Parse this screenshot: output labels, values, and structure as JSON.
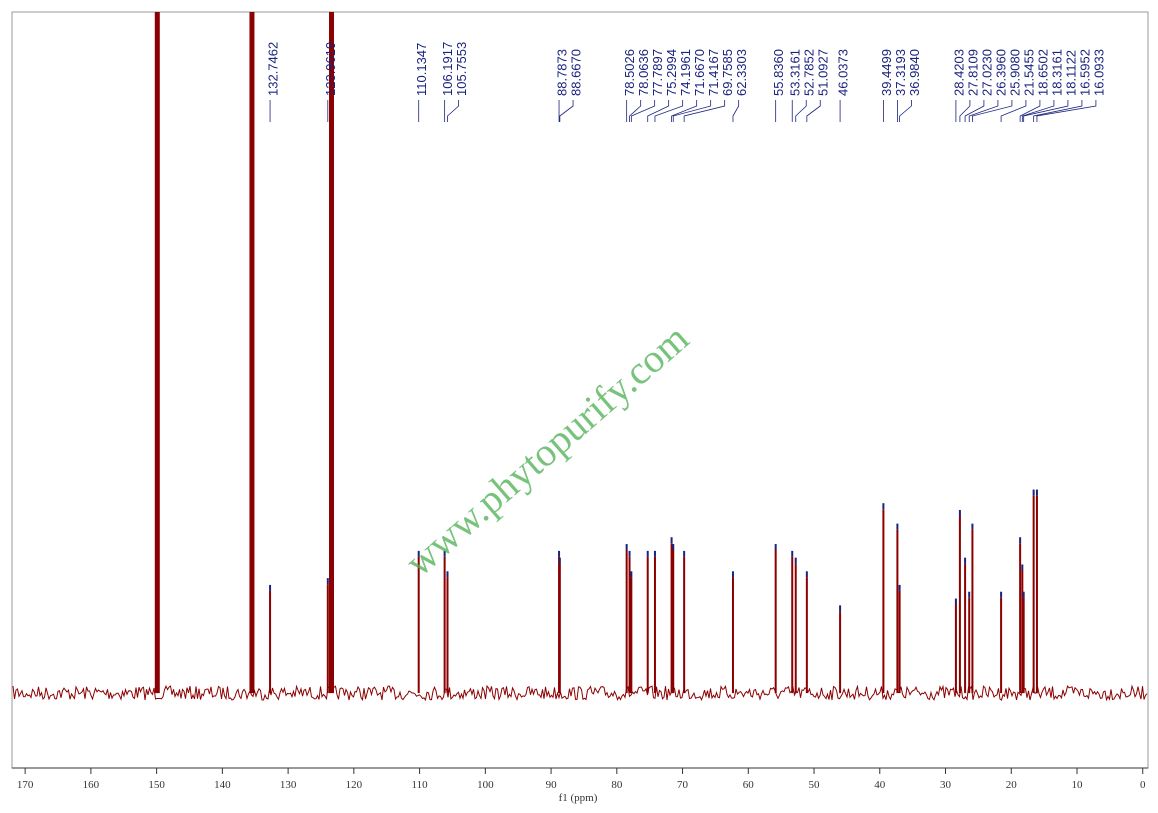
{
  "chart_data": {
    "type": "spectrum",
    "x_label": "f1 (ppm)",
    "watermark": "www.phytopurify.com",
    "xlim": [
      172,
      -0.8
    ],
    "xticks": [
      170,
      160,
      150,
      140,
      130,
      120,
      110,
      100,
      90,
      80,
      70,
      60,
      50,
      40,
      30,
      20,
      10,
      0
    ],
    "ylim": [
      -11,
      100
    ],
    "color": "#8b0000",
    "label_color": "#1a237e",
    "peaks": {
      "x": [
        132.7462,
        123.9619,
        110.1347,
        106.1917,
        105.7553,
        88.7873,
        88.667,
        78.5026,
        78.0636,
        77.7897,
        75.2994,
        74.1961,
        71.667,
        71.4167,
        69.7585,
        62.3303,
        55.836,
        53.3161,
        52.7852,
        51.0927,
        46.0373,
        39.4499,
        37.3193,
        36.984,
        28.4203,
        27.8109,
        27.023,
        26.396,
        25.908,
        21.5455,
        18.6502,
        18.3161,
        18.1122,
        16.5952,
        16.0933
      ],
      "labels": [
        "132.7462",
        "123.9619",
        "110.1347",
        "106.1917",
        "105.7553",
        "88.7873",
        "88.6670",
        "78.5026",
        "78.0636",
        "77.7897",
        "75.2994",
        "74.1961",
        "71.6670",
        "71.4167",
        "69.7585",
        "62.3303",
        "55.8360",
        "53.3161",
        "52.7852",
        "51.0927",
        "46.0373",
        "39.4499",
        "37.3193",
        "36.9840",
        "28.4203",
        "27.8109",
        "27.0230",
        "26.3960",
        "25.9080",
        "21.5455",
        "18.6502",
        "18.3161",
        "18.1122",
        "16.5952",
        "16.0933"
      ],
      "values": [
        15,
        16,
        20,
        20,
        17,
        20,
        19,
        21,
        20,
        17,
        20,
        20,
        22,
        21,
        20,
        17,
        21,
        20,
        19,
        17,
        12,
        27,
        24,
        15,
        13,
        26,
        19,
        14,
        24,
        14,
        22,
        18,
        14,
        29,
        29
      ]
    },
    "solvent": {
      "x": [
        149.9,
        135.5,
        123.4
      ],
      "values": [
        100,
        100,
        100
      ]
    }
  }
}
